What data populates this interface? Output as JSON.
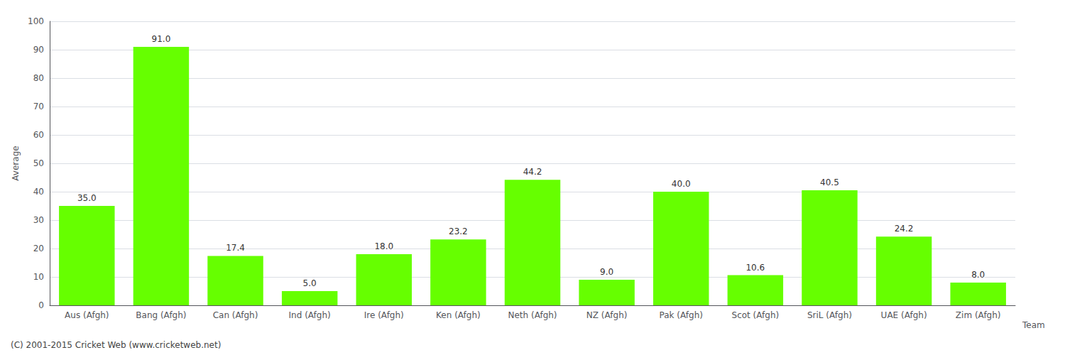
{
  "chart_data": {
    "type": "bar",
    "categories": [
      "Aus (Afgh)",
      "Bang (Afgh)",
      "Can (Afgh)",
      "Ind (Afgh)",
      "Ire (Afgh)",
      "Ken (Afgh)",
      "Neth (Afgh)",
      "NZ (Afgh)",
      "Pak (Afgh)",
      "Scot (Afgh)",
      "SriL (Afgh)",
      "UAE (Afgh)",
      "Zim (Afgh)"
    ],
    "values": [
      35.0,
      91.0,
      17.4,
      5.0,
      18.0,
      23.2,
      44.2,
      9.0,
      40.0,
      10.6,
      40.5,
      24.2,
      8.0
    ],
    "value_labels": [
      "35.0",
      "91.0",
      "17.4",
      "5.0",
      "18.0",
      "23.2",
      "44.2",
      "9.0",
      "40.0",
      "10.6",
      "40.5",
      "24.2",
      "8.0"
    ],
    "data_labels": true,
    "color": "#66ff00",
    "xlabel": "Team",
    "ylabel": "Average",
    "annotations": [
      "(C) 2001-2015 Cricket Web (www.cricketweb.net)"
    ],
    "ylim": [
      0,
      100
    ],
    "yticks": [
      0,
      10,
      20,
      30,
      40,
      50,
      60,
      70,
      80,
      90,
      100
    ],
    "grid": true
  }
}
